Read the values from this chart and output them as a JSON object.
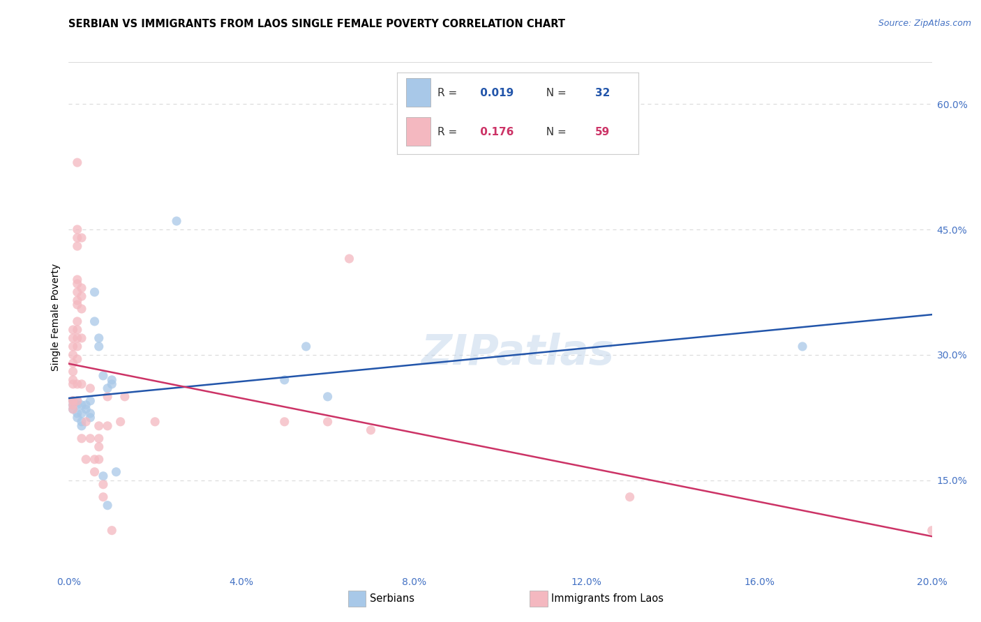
{
  "title": "SERBIAN VS IMMIGRANTS FROM LAOS SINGLE FEMALE POVERTY CORRELATION CHART",
  "source": "Source: ZipAtlas.com",
  "ylabel": "Single Female Poverty",
  "xmin": 0.0,
  "xmax": 0.2,
  "ymin": 0.04,
  "ymax": 0.65,
  "yticks_right": [
    0.15,
    0.3,
    0.45,
    0.6
  ],
  "ytick_labels_right": [
    "15.0%",
    "30.0%",
    "45.0%",
    "60.0%"
  ],
  "xticks": [
    0.0,
    0.04,
    0.08,
    0.12,
    0.16,
    0.2
  ],
  "xtick_labels": [
    "0.0%",
    "4.0%",
    "8.0%",
    "12.0%",
    "16.0%",
    "20.0%"
  ],
  "serbian_R": 0.019,
  "serbian_N": 32,
  "laos_R": 0.176,
  "laos_N": 59,
  "serbian_color": "#a8c8e8",
  "laos_color": "#f4b8c0",
  "serbian_line_color": "#2255aa",
  "laos_line_color": "#cc3366",
  "background_color": "#ffffff",
  "grid_color": "#dddddd",
  "watermark": "ZIPatlas",
  "serbian_points": [
    [
      0.001,
      0.245
    ],
    [
      0.001,
      0.24
    ],
    [
      0.001,
      0.235
    ],
    [
      0.002,
      0.245
    ],
    [
      0.002,
      0.24
    ],
    [
      0.002,
      0.23
    ],
    [
      0.002,
      0.225
    ],
    [
      0.003,
      0.24
    ],
    [
      0.003,
      0.23
    ],
    [
      0.003,
      0.22
    ],
    [
      0.003,
      0.215
    ],
    [
      0.004,
      0.24
    ],
    [
      0.004,
      0.235
    ],
    [
      0.005,
      0.245
    ],
    [
      0.005,
      0.23
    ],
    [
      0.005,
      0.225
    ],
    [
      0.006,
      0.375
    ],
    [
      0.006,
      0.34
    ],
    [
      0.007,
      0.32
    ],
    [
      0.007,
      0.31
    ],
    [
      0.008,
      0.275
    ],
    [
      0.008,
      0.155
    ],
    [
      0.009,
      0.12
    ],
    [
      0.009,
      0.26
    ],
    [
      0.01,
      0.265
    ],
    [
      0.01,
      0.27
    ],
    [
      0.011,
      0.16
    ],
    [
      0.025,
      0.46
    ],
    [
      0.05,
      0.27
    ],
    [
      0.055,
      0.31
    ],
    [
      0.06,
      0.25
    ],
    [
      0.17,
      0.31
    ]
  ],
  "laos_points": [
    [
      0.001,
      0.245
    ],
    [
      0.001,
      0.235
    ],
    [
      0.001,
      0.245
    ],
    [
      0.001,
      0.24
    ],
    [
      0.001,
      0.265
    ],
    [
      0.001,
      0.27
    ],
    [
      0.001,
      0.28
    ],
    [
      0.001,
      0.29
    ],
    [
      0.001,
      0.3
    ],
    [
      0.001,
      0.31
    ],
    [
      0.001,
      0.32
    ],
    [
      0.001,
      0.33
    ],
    [
      0.002,
      0.245
    ],
    [
      0.002,
      0.265
    ],
    [
      0.002,
      0.295
    ],
    [
      0.002,
      0.31
    ],
    [
      0.002,
      0.32
    ],
    [
      0.002,
      0.33
    ],
    [
      0.002,
      0.34
    ],
    [
      0.002,
      0.36
    ],
    [
      0.002,
      0.365
    ],
    [
      0.002,
      0.375
    ],
    [
      0.002,
      0.385
    ],
    [
      0.002,
      0.39
    ],
    [
      0.002,
      0.43
    ],
    [
      0.002,
      0.44
    ],
    [
      0.002,
      0.45
    ],
    [
      0.002,
      0.53
    ],
    [
      0.003,
      0.2
    ],
    [
      0.003,
      0.265
    ],
    [
      0.003,
      0.32
    ],
    [
      0.003,
      0.355
    ],
    [
      0.003,
      0.37
    ],
    [
      0.003,
      0.38
    ],
    [
      0.003,
      0.44
    ],
    [
      0.004,
      0.175
    ],
    [
      0.004,
      0.22
    ],
    [
      0.005,
      0.2
    ],
    [
      0.005,
      0.26
    ],
    [
      0.006,
      0.16
    ],
    [
      0.006,
      0.175
    ],
    [
      0.007,
      0.175
    ],
    [
      0.007,
      0.19
    ],
    [
      0.007,
      0.2
    ],
    [
      0.007,
      0.215
    ],
    [
      0.008,
      0.13
    ],
    [
      0.008,
      0.145
    ],
    [
      0.009,
      0.215
    ],
    [
      0.009,
      0.25
    ],
    [
      0.01,
      0.09
    ],
    [
      0.012,
      0.22
    ],
    [
      0.013,
      0.25
    ],
    [
      0.02,
      0.22
    ],
    [
      0.05,
      0.22
    ],
    [
      0.06,
      0.22
    ],
    [
      0.065,
      0.415
    ],
    [
      0.07,
      0.21
    ],
    [
      0.13,
      0.13
    ],
    [
      0.2,
      0.09
    ]
  ]
}
